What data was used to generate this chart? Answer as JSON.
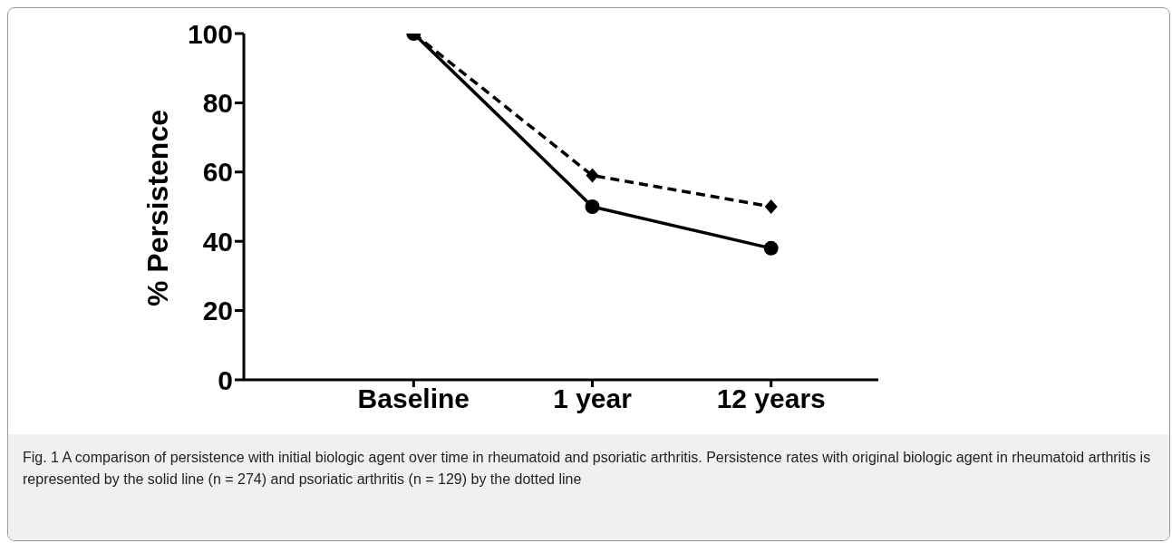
{
  "chart_data": {
    "type": "line",
    "ylabel": "% Persistence",
    "categories": [
      "Baseline",
      "1 year",
      "12 years"
    ],
    "series": [
      {
        "color": "#000000",
        "values": [
          100,
          50,
          38
        ],
        "marker": "circle",
        "line_style": "solid"
      },
      {
        "color": "#000000",
        "values": [
          100,
          59,
          50
        ],
        "marker": "diamond",
        "line_style": "dashed"
      }
    ],
    "ylim": [
      0,
      100
    ],
    "yticks": [
      0,
      20,
      40,
      60,
      80,
      100
    ],
    "grid": false,
    "legend": false,
    "annotations": [
      "Fig. 1 A comparison of persistence with initial biologic agent over time in rheumatoid and psoriatic arthritis. Persistence rates with original biologic agent in rheumatoid arthritis is represented by the solid line (n = 274) and psoriatic arthritis (n = 129) by the dotted line"
    ]
  }
}
